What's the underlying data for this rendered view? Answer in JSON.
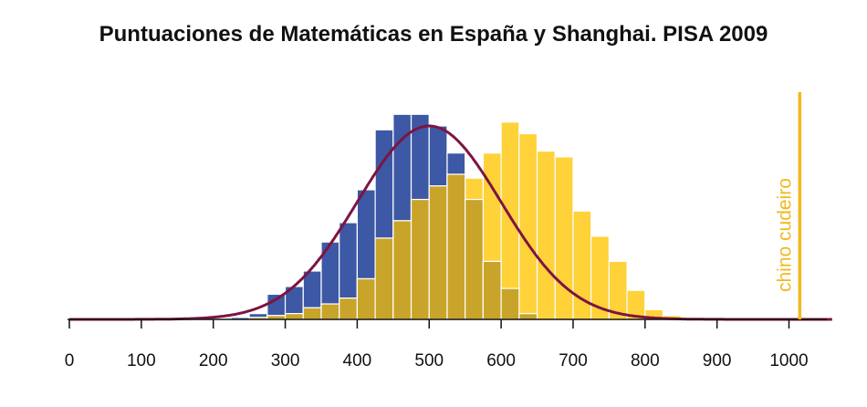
{
  "title": "Puntuaciones de Matemáticas en España y Shanghai. PISA 2009",
  "colors": {
    "spain": "#3d58a4",
    "shanghai": "#ffd23a",
    "overlap": "#c9a42a",
    "curve": "#7d1442",
    "marker": "#f2b81e",
    "axis": "#111111"
  },
  "chart_data": {
    "type": "bar",
    "subtype": "overlapping-histogram",
    "title": "Puntuaciones de Matemáticas en España y Shanghai. PISA 2009",
    "xlabel": "",
    "ylabel": "",
    "xlim": [
      0,
      1060
    ],
    "ylim": [
      0,
      1.05
    ],
    "x_ticks": [
      "0",
      "100",
      "200",
      "300",
      "400",
      "500",
      "600",
      "700",
      "800",
      "900",
      "1000"
    ],
    "bin_width": 25,
    "grid": false,
    "series": [
      {
        "color": "#3d58a4",
        "bins": [
          {
            "x0": 225,
            "value": 0.01
          },
          {
            "x0": 250,
            "value": 0.03
          },
          {
            "x0": 275,
            "value": 0.13
          },
          {
            "x0": 300,
            "value": 0.17
          },
          {
            "x0": 325,
            "value": 0.25
          },
          {
            "x0": 350,
            "value": 0.4
          },
          {
            "x0": 375,
            "value": 0.5
          },
          {
            "x0": 400,
            "value": 0.67
          },
          {
            "x0": 425,
            "value": 0.98
          },
          {
            "x0": 450,
            "value": 1.06
          },
          {
            "x0": 475,
            "value": 1.06
          },
          {
            "x0": 500,
            "value": 1.0
          },
          {
            "x0": 525,
            "value": 0.86
          },
          {
            "x0": 550,
            "value": 0.62
          },
          {
            "x0": 575,
            "value": 0.3
          },
          {
            "x0": 600,
            "value": 0.16
          },
          {
            "x0": 625,
            "value": 0.03
          }
        ]
      },
      {
        "color": "#ffd23a",
        "bins": [
          {
            "x0": 250,
            "value": 0.01
          },
          {
            "x0": 275,
            "value": 0.02
          },
          {
            "x0": 300,
            "value": 0.03
          },
          {
            "x0": 325,
            "value": 0.06
          },
          {
            "x0": 350,
            "value": 0.08
          },
          {
            "x0": 375,
            "value": 0.11
          },
          {
            "x0": 400,
            "value": 0.21
          },
          {
            "x0": 425,
            "value": 0.42
          },
          {
            "x0": 450,
            "value": 0.51
          },
          {
            "x0": 475,
            "value": 0.62
          },
          {
            "x0": 500,
            "value": 0.69
          },
          {
            "x0": 525,
            "value": 0.75
          },
          {
            "x0": 550,
            "value": 0.73
          },
          {
            "x0": 575,
            "value": 0.86
          },
          {
            "x0": 600,
            "value": 1.02
          },
          {
            "x0": 625,
            "value": 0.96
          },
          {
            "x0": 650,
            "value": 0.87
          },
          {
            "x0": 675,
            "value": 0.84
          },
          {
            "x0": 700,
            "value": 0.56
          },
          {
            "x0": 725,
            "value": 0.43
          },
          {
            "x0": 750,
            "value": 0.3
          },
          {
            "x0": 775,
            "value": 0.15
          },
          {
            "x0": 800,
            "value": 0.05
          },
          {
            "x0": 825,
            "value": 0.02
          },
          {
            "x0": 850,
            "value": 0.01
          }
        ]
      }
    ],
    "curve": {
      "type": "normal",
      "mean": 500,
      "sd": 100,
      "peak": 1.0,
      "color": "#7d1442"
    },
    "vline": {
      "x": 1015,
      "label": "chino cudeiro",
      "color": "#f2b81e"
    }
  }
}
